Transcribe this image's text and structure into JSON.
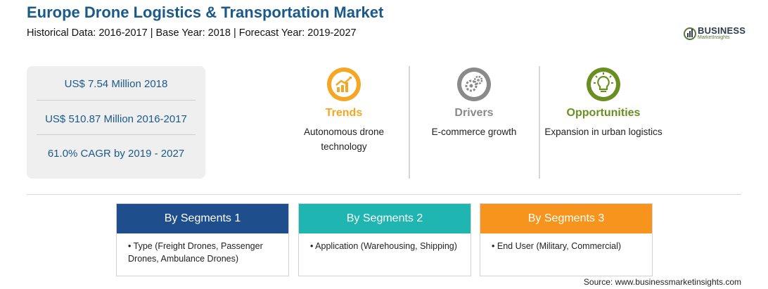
{
  "header": {
    "title": "Europe Drone Logistics & Transportation Market",
    "subtitle": "Historical Data: 2016-2017 | Base Year: 2018 | Forecast Year: 2019-2027"
  },
  "logo": {
    "name": "BUSINESS",
    "tagline": "MarketInsights",
    "icon": "globe-chart-icon"
  },
  "stats": [
    "US$ 7.54 Million 2018",
    "US$ 510.87 Million 2016-2017",
    "61.0% CAGR by 2019 - 2027"
  ],
  "insights": [
    {
      "heading": "Trends",
      "text": "Autonomous drone technology",
      "icon": "trend-chart-icon",
      "color": "#f5a623"
    },
    {
      "heading": "Drivers",
      "text": "E-commerce growth",
      "icon": "gears-icon",
      "color": "#8a8a8a"
    },
    {
      "heading": "Opportunities",
      "text": "Expansion in urban logistics",
      "icon": "lightbulb-icon",
      "color": "#6b8e23"
    }
  ],
  "segments": [
    {
      "title": "By Segments 1",
      "item": "Type (Freight Drones, Passenger Drones, Ambulance Drones)",
      "color": "#1f4e8c"
    },
    {
      "title": "By Segments 2",
      "item": "Application (Warehousing, Shipping)",
      "color": "#1fb5b0"
    },
    {
      "title": "By Segments 3",
      "item": "End User (Military, Commercial)",
      "color": "#f7941d"
    }
  ],
  "source": "Source: www.businessmarketinsights.com"
}
